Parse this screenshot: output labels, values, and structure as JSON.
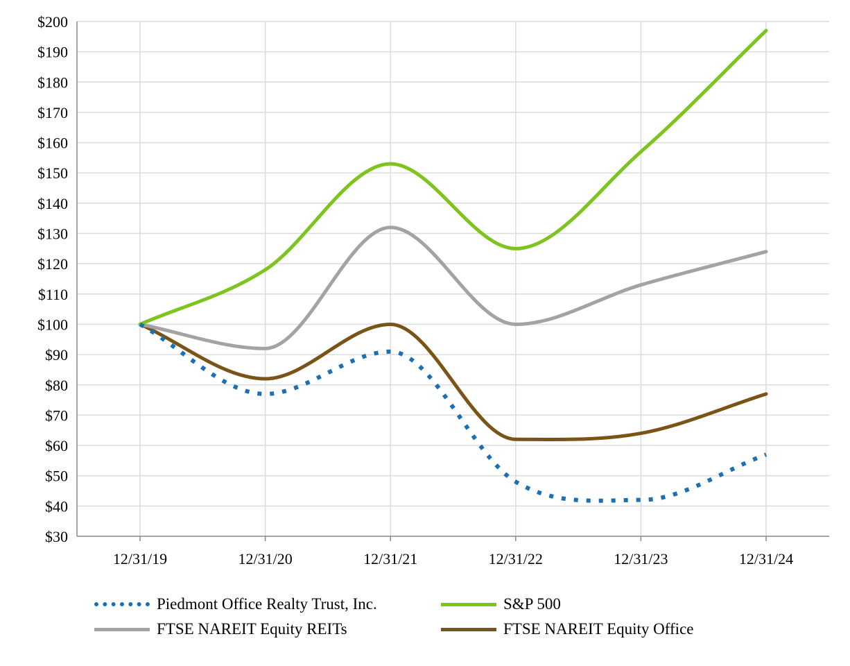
{
  "chart_data": {
    "type": "line",
    "title": "",
    "xlabel": "",
    "ylabel": "",
    "categories": [
      "12/31/19",
      "12/31/20",
      "12/31/21",
      "12/31/22",
      "12/31/23",
      "12/31/24"
    ],
    "ylim": [
      30,
      200
    ],
    "yticks": [
      30,
      40,
      50,
      60,
      70,
      80,
      90,
      100,
      110,
      120,
      130,
      140,
      150,
      160,
      170,
      180,
      190,
      200
    ],
    "ytick_labels": [
      "$30",
      "$40",
      "$50",
      "$60",
      "$70",
      "$80",
      "$90",
      "$100",
      "$110",
      "$120",
      "$130",
      "$140",
      "$150",
      "$160",
      "$170",
      "$180",
      "$190",
      "$200"
    ],
    "grid": true,
    "legend_position": "bottom",
    "series": [
      {
        "name": "Piedmont Office Realty Trust, Inc.",
        "values": [
          100,
          77,
          91,
          48,
          42,
          57
        ],
        "color": "#1b6fb5",
        "style": "dotted"
      },
      {
        "name": "S&P 500",
        "values": [
          100,
          118,
          153,
          125,
          157,
          197
        ],
        "color": "#7dc41f",
        "style": "solid"
      },
      {
        "name": "FTSE NAREIT Equity REITs",
        "values": [
          100,
          92,
          132,
          100,
          113,
          124
        ],
        "color": "#a3a3a3",
        "style": "solid"
      },
      {
        "name": "FTSE NAREIT Equity Office",
        "values": [
          100,
          82,
          100,
          62,
          64,
          77
        ],
        "color": "#7a5416",
        "style": "solid"
      }
    ]
  }
}
